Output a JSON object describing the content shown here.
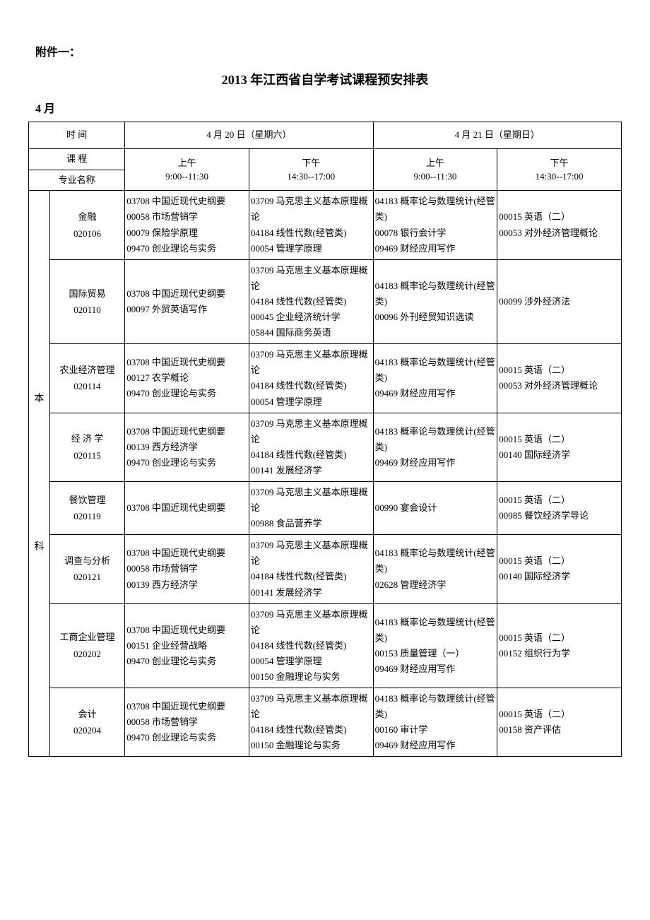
{
  "header": {
    "attachment": "附件一：",
    "title": "2013 年江西省自学考试课程预安排表",
    "month": "4 月"
  },
  "tableHeader": {
    "timeLabel": "时 间",
    "courseLabel": "课 程",
    "majorLabel": "专业名称",
    "day1": "4 月 20 日（星期六）",
    "day2": "4 月 21 日（星期日）",
    "morning": "上午",
    "morningTime": "9:00--11:30",
    "afternoon": "下午",
    "afternoonTime": "14:30--17:00"
  },
  "category": "本\n\n\n\n\n科",
  "rows": [
    {
      "major": "金融\n020106",
      "s1": "03708 中国近现代史纲要\n00058 市场营销学\n00079 保险学原理\n09470 创业理论与实务",
      "s2": "03709 马克思主义基本原理概论\n04184 线性代数(经管类)\n00054 管理学原理",
      "s3": "04183 概率论与数理统计(经管类)\n00078 银行会计学\n09469 财经应用写作",
      "s4": "00015 英语（二）\n00053 对外经济管理概论"
    },
    {
      "major": "国际贸易\n020110",
      "s1": "03708 中国近现代史纲要\n00097 外贸英语写作",
      "s2": "03709 马克思主义基本原理概论\n04184 线性代数(经管类)\n00045 企业经济统计学\n05844 国际商务英语",
      "s3": "04183 概率论与数理统计(经管类)\n00096 外刊经贸知识选读",
      "s4": "00099 涉外经济法"
    },
    {
      "major": "农业经济管理\n020114",
      "s1": "03708 中国近现代史纲要\n00127 农学概论\n09470 创业理论与实务",
      "s2": "03709 马克思主义基本原理概论\n04184 线性代数(经管类)\n00054 管理学原理",
      "s3": "04183 概率论与数理统计(经管类)\n09469 财经应用写作",
      "s4": "00015 英语（二）\n00053 对外经济管理概论"
    },
    {
      "major": "经 济 学\n020115",
      "s1": "03708 中国近现代史纲要\n00139 西方经济学\n09470 创业理论与实务",
      "s2": "03709 马克思主义基本原理概论\n04184 线性代数(经管类)\n00141 发展经济学",
      "s3": "04183 概率论与数理统计(经管类)\n09469 财经应用写作",
      "s4": "00015 英语（二）\n00140 国际经济学"
    },
    {
      "major": "餐饮管理\n020119",
      "s1": "03708 中国近现代史纲要",
      "s2": "03709 马克思主义基本原理概论\n00988 食品营养学",
      "s3": "00990 宴会设计",
      "s4": "00015 英语（二）\n00985 餐饮经济学导论"
    },
    {
      "major": "调查与分析\n020121",
      "s1": "03708 中国近现代史纲要\n00058 市场营销学\n00139 西方经济学",
      "s2": "03709 马克思主义基本原理概论\n04184 线性代数(经管类)\n00141 发展经济学",
      "s3": "04183 概率论与数理统计(经管类)\n02628 管理经济学",
      "s4": "00015 英语（二）\n00140 国际经济学"
    },
    {
      "major": "工商企业管理\n020202",
      "s1": "03708 中国近现代史纲要\n00151 企业经营战略\n09470 创业理论与实务",
      "s2": "03709 马克思主义基本原理概论\n04184 线性代数(经管类)\n00054 管理学原理\n00150 金融理论与实务",
      "s3": "04183 概率论与数理统计(经管类)\n00153 质量管理（一）\n09469 财经应用写作",
      "s4": "00015 英语（二）\n00152 组织行为学"
    },
    {
      "major": "会计\n020204",
      "s1": "03708 中国近现代史纲要\n00058 市场营销学\n09470 创业理论与实务",
      "s2": "03709 马克思主义基本原理概论\n04184 线性代数(经管类)\n00150 金融理论与实务",
      "s3": "04183 概率论与数理统计(经管类)\n00160 审计学\n09469 财经应用写作",
      "s4": "00015 英语（二）\n00158 资产评估"
    }
  ]
}
